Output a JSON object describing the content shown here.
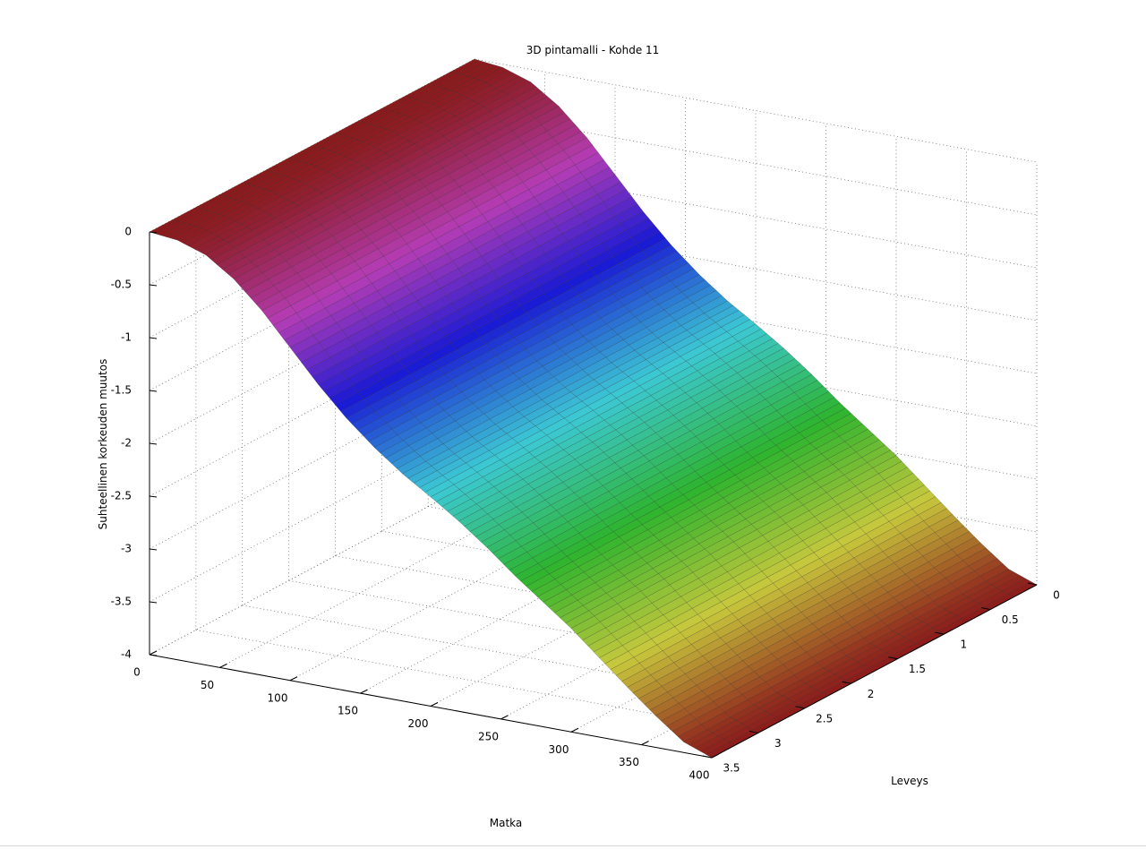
{
  "chart_data": {
    "type": "surface",
    "title": "3D pintamalli - Kohde 11",
    "xlabel": "Matka",
    "ylabel": "Leveys",
    "zlabel": "Suhteellinen korkeuden muutos",
    "xlim": [
      0,
      400
    ],
    "ylim": [
      0,
      3.5
    ],
    "zlim": [
      -4,
      0
    ],
    "xticks": [
      "0",
      "50",
      "100",
      "150",
      "200",
      "250",
      "300",
      "350",
      "400"
    ],
    "yticks": [
      "0",
      "0.5",
      "1",
      "1.5",
      "2",
      "2.5",
      "3",
      "3.5"
    ],
    "zticks": [
      "0",
      "-0.5",
      "-1",
      "-1.5",
      "-2",
      "-2.5",
      "-3",
      "-3.5",
      "-4"
    ],
    "grid": true,
    "colormap": [
      "#8b1a1a",
      "#b53cb5",
      "#1a1ad4",
      "#3cc8d4",
      "#2eb42e",
      "#c8c83c",
      "#8b1a1a"
    ],
    "profile": {
      "x": [
        0,
        20,
        40,
        60,
        80,
        100,
        120,
        140,
        160,
        180,
        200,
        220,
        240,
        260,
        280,
        300,
        320,
        340,
        360,
        380,
        400
      ],
      "z": [
        0,
        -0.03,
        -0.12,
        -0.3,
        -0.55,
        -0.85,
        -1.15,
        -1.42,
        -1.65,
        -1.85,
        -2.02,
        -2.2,
        -2.4,
        -2.62,
        -2.82,
        -3.02,
        -3.25,
        -3.48,
        -3.7,
        -3.9,
        -4.0
      ]
    }
  }
}
